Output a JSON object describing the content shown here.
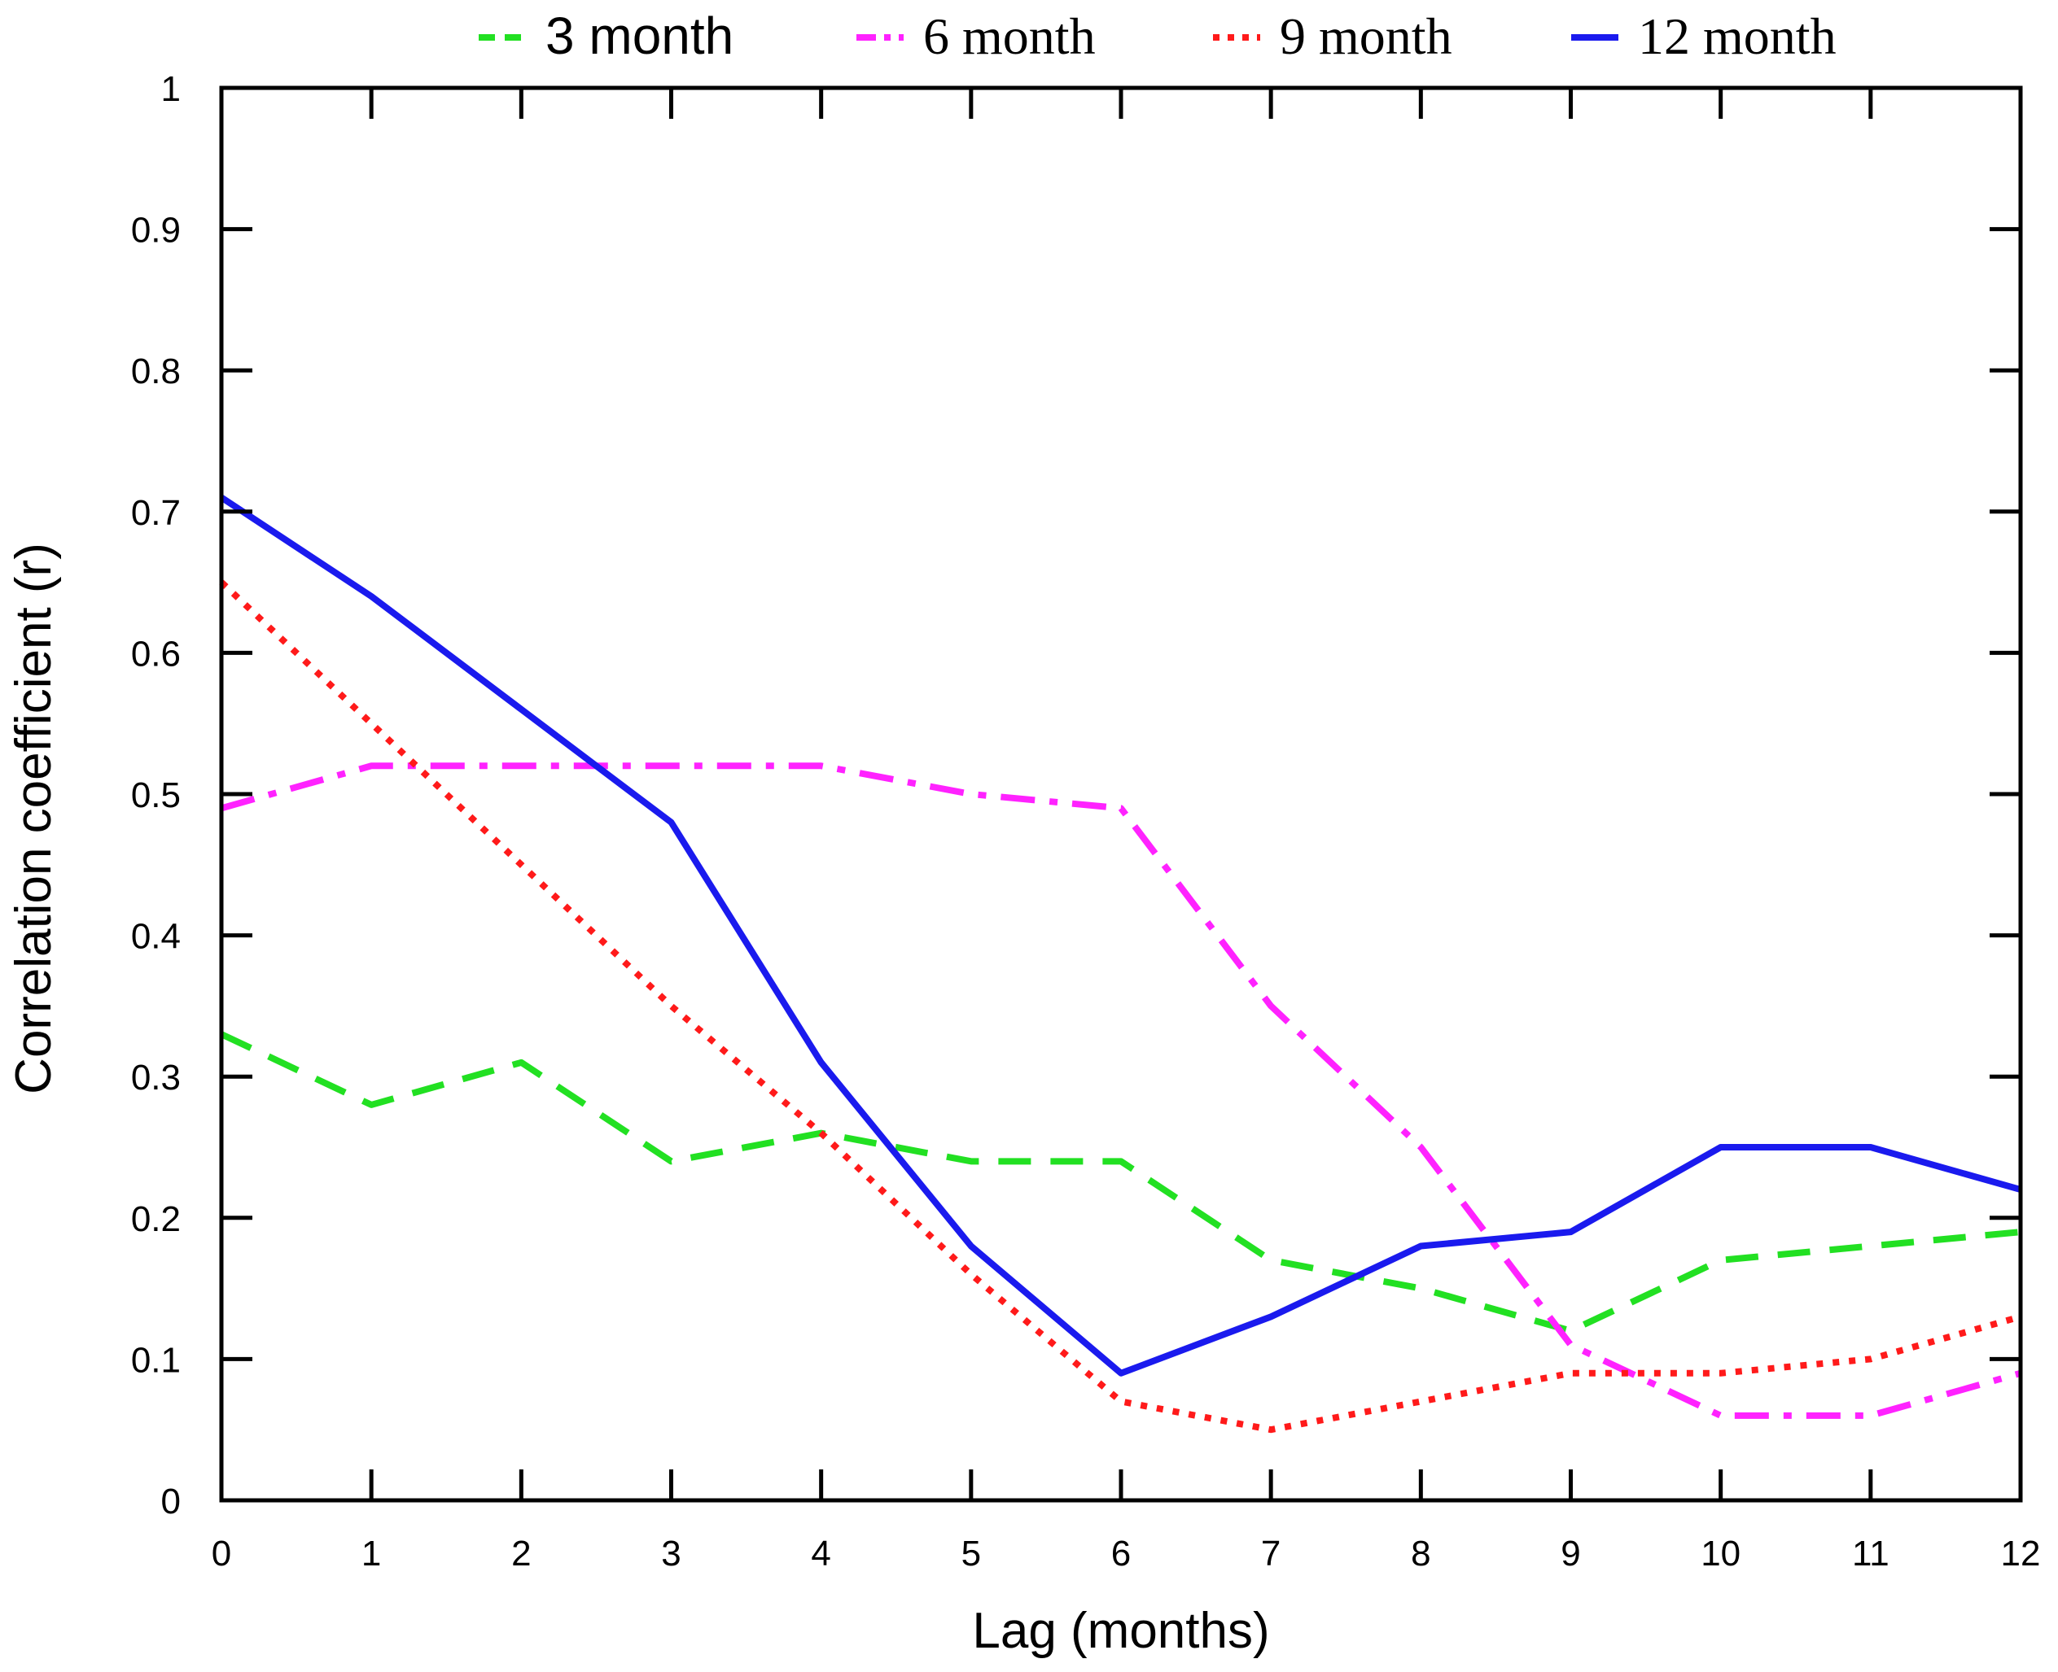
{
  "chart_data": {
    "type": "line",
    "title": "",
    "xlabel": "Lag (months)",
    "ylabel": "Correlation coefficient (r)",
    "xlim": [
      0,
      12
    ],
    "ylim": [
      0,
      1
    ],
    "x": [
      0,
      1,
      2,
      3,
      4,
      5,
      6,
      7,
      8,
      9,
      10,
      11,
      12
    ],
    "xticks": [
      "0",
      "1",
      "2",
      "3",
      "4",
      "5",
      "6",
      "7",
      "8",
      "9",
      "10",
      "11",
      "12"
    ],
    "yticks": [
      "0",
      "0.1",
      "0.2",
      "0.3",
      "0.4",
      "0.5",
      "0.6",
      "0.7",
      "0.8",
      "0.9",
      "1"
    ],
    "ytick_values": [
      0,
      0.1,
      0.2,
      0.3,
      0.4,
      0.5,
      0.6,
      0.7,
      0.8,
      0.9,
      1
    ],
    "grid": false,
    "legend_position": "top",
    "series": [
      {
        "name": "3 month",
        "color": "#22e022",
        "style": "dashed",
        "values": [
          0.33,
          0.28,
          0.31,
          0.24,
          0.26,
          0.24,
          0.24,
          0.17,
          0.15,
          0.12,
          0.17,
          0.18,
          0.19
        ]
      },
      {
        "name": "6 month",
        "color": "#ff22ff",
        "style": "dashdot",
        "values": [
          0.49,
          0.52,
          0.52,
          0.52,
          0.52,
          0.5,
          0.49,
          0.35,
          0.25,
          0.11,
          0.06,
          0.06,
          0.09
        ]
      },
      {
        "name": "9 month",
        "color": "#ff1a1a",
        "style": "dotted",
        "values": [
          0.65,
          0.55,
          0.45,
          0.35,
          0.26,
          0.16,
          0.07,
          0.05,
          0.07,
          0.09,
          0.09,
          0.1,
          0.13
        ]
      },
      {
        "name": "12 month",
        "color": "#1a1aee",
        "style": "solid",
        "values": [
          0.71,
          0.64,
          0.56,
          0.48,
          0.31,
          0.18,
          0.09,
          0.13,
          0.18,
          0.19,
          0.25,
          0.25,
          0.22
        ]
      }
    ]
  }
}
